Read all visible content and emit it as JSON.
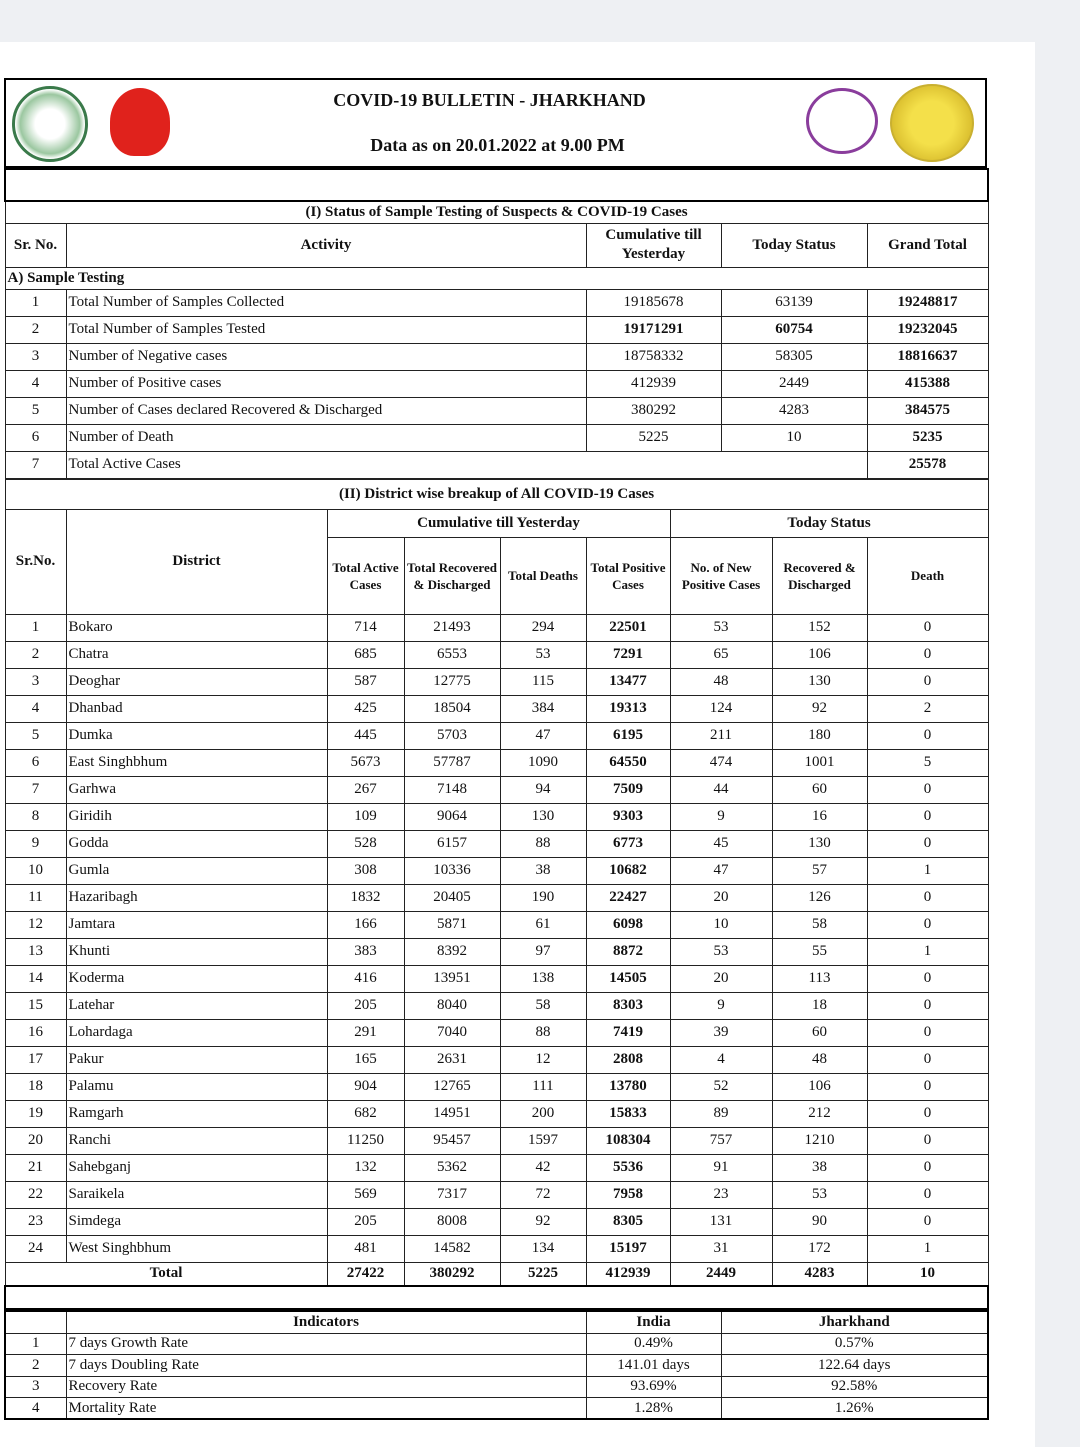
{
  "header": {
    "title": "COVID-19 BULLETIN - JHARKHAND",
    "subtitle": "Data as on 20.01.2022 at 9.00 PM",
    "logos": [
      "Government of Jharkhand seal",
      "National Health Mission",
      "Swasth Jharkhand Sukhi Jharkhand",
      "IDSP"
    ]
  },
  "section1": {
    "title": "(I) Status of Sample Testing of Suspects & COVID-19 Cases",
    "columns": [
      "Sr. No.",
      "Activity",
      "Cumulative till Yesterday",
      "Today Status",
      "Grand Total"
    ],
    "group": "A) Sample Testing",
    "rows": [
      [
        "1",
        "Total Number of Samples Collected",
        "19185678",
        "63139",
        "19248817"
      ],
      [
        "2",
        "Total Number of Samples Tested",
        "19171291",
        "60754",
        "19232045"
      ],
      [
        "3",
        "Number of Negative cases",
        "18758332",
        "58305",
        "18816637"
      ],
      [
        "4",
        "Number of Positive cases",
        "412939",
        "2449",
        "415388"
      ],
      [
        "5",
        "Number of Cases declared Recovered & Discharged",
        "380292",
        "4283",
        "384575"
      ],
      [
        "6",
        "Number of Death",
        "5225",
        "10",
        "5235"
      ]
    ],
    "active": [
      "7",
      "Total Active Cases",
      "25578"
    ]
  },
  "section2": {
    "title": "(II) District wise breakup of All COVID-19 Cases",
    "group_cum": "Cumulative till Yesterday",
    "group_today": "Today Status",
    "columns": [
      "Sr.No.",
      "District",
      "Total Active Cases",
      "Total Recovered & Discharged",
      "Total Deaths",
      "Total Positive Cases",
      "No. of New Positive Cases",
      "Recovered & Discharged",
      "Death"
    ],
    "rows": [
      [
        "1",
        "Bokaro",
        "714",
        "21493",
        "294",
        "22501",
        "53",
        "152",
        "0"
      ],
      [
        "2",
        "Chatra",
        "685",
        "6553",
        "53",
        "7291",
        "65",
        "106",
        "0"
      ],
      [
        "3",
        "Deoghar",
        "587",
        "12775",
        "115",
        "13477",
        "48",
        "130",
        "0"
      ],
      [
        "4",
        "Dhanbad",
        "425",
        "18504",
        "384",
        "19313",
        "124",
        "92",
        "2"
      ],
      [
        "5",
        "Dumka",
        "445",
        "5703",
        "47",
        "6195",
        "211",
        "180",
        "0"
      ],
      [
        "6",
        "East Singhbhum",
        "5673",
        "57787",
        "1090",
        "64550",
        "474",
        "1001",
        "5"
      ],
      [
        "7",
        "Garhwa",
        "267",
        "7148",
        "94",
        "7509",
        "44",
        "60",
        "0"
      ],
      [
        "8",
        "Giridih",
        "109",
        "9064",
        "130",
        "9303",
        "9",
        "16",
        "0"
      ],
      [
        "9",
        "Godda",
        "528",
        "6157",
        "88",
        "6773",
        "45",
        "130",
        "0"
      ],
      [
        "10",
        "Gumla",
        "308",
        "10336",
        "38",
        "10682",
        "47",
        "57",
        "1"
      ],
      [
        "11",
        "Hazaribagh",
        "1832",
        "20405",
        "190",
        "22427",
        "20",
        "126",
        "0"
      ],
      [
        "12",
        "Jamtara",
        "166",
        "5871",
        "61",
        "6098",
        "10",
        "58",
        "0"
      ],
      [
        "13",
        "Khunti",
        "383",
        "8392",
        "97",
        "8872",
        "53",
        "55",
        "1"
      ],
      [
        "14",
        "Koderma",
        "416",
        "13951",
        "138",
        "14505",
        "20",
        "113",
        "0"
      ],
      [
        "15",
        "Latehar",
        "205",
        "8040",
        "58",
        "8303",
        "9",
        "18",
        "0"
      ],
      [
        "16",
        "Lohardaga",
        "291",
        "7040",
        "88",
        "7419",
        "39",
        "60",
        "0"
      ],
      [
        "17",
        "Pakur",
        "165",
        "2631",
        "12",
        "2808",
        "4",
        "48",
        "0"
      ],
      [
        "18",
        "Palamu",
        "904",
        "12765",
        "111",
        "13780",
        "52",
        "106",
        "0"
      ],
      [
        "19",
        "Ramgarh",
        "682",
        "14951",
        "200",
        "15833",
        "89",
        "212",
        "0"
      ],
      [
        "20",
        "Ranchi",
        "11250",
        "95457",
        "1597",
        "108304",
        "757",
        "1210",
        "0"
      ],
      [
        "21",
        "Sahebganj",
        "132",
        "5362",
        "42",
        "5536",
        "91",
        "38",
        "0"
      ],
      [
        "22",
        "Saraikela",
        "569",
        "7317",
        "72",
        "7958",
        "23",
        "53",
        "0"
      ],
      [
        "23",
        "Simdega",
        "205",
        "8008",
        "92",
        "8305",
        "131",
        "90",
        "0"
      ],
      [
        "24",
        "West Singhbhum",
        "481",
        "14582",
        "134",
        "15197",
        "31",
        "172",
        "1"
      ]
    ],
    "total": [
      "Total",
      "27422",
      "380292",
      "5225",
      "412939",
      "2449",
      "4283",
      "10"
    ]
  },
  "indicators": {
    "columns": [
      "Indicators",
      "India",
      "Jharkhand"
    ],
    "rows": [
      [
        "1",
        "7 days Growth Rate",
        "0.49%",
        "0.57%"
      ],
      [
        "2",
        "7 days Doubling Rate",
        "141.01 days",
        "122.64 days"
      ],
      [
        "3",
        "Recovery Rate",
        "93.69%",
        "92.58%"
      ],
      [
        "4",
        "Mortality Rate",
        "1.28%",
        "1.26%"
      ]
    ]
  }
}
